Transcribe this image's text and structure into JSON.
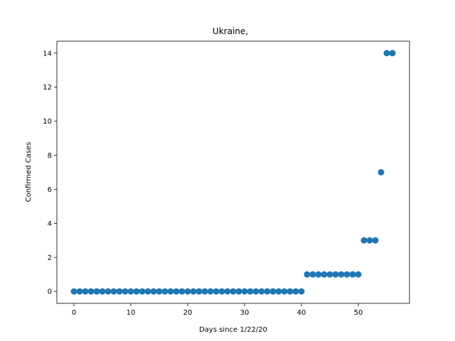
{
  "chart_data": {
    "type": "scatter",
    "title": "Ukraine,",
    "xlabel": "Days since 1/22/20",
    "ylabel": "Confirmed Cases",
    "xlim": [
      -3,
      59
    ],
    "ylim": [
      -0.7,
      14.7
    ],
    "xticks": [
      0,
      10,
      20,
      30,
      40,
      50
    ],
    "yticks": [
      0,
      2,
      4,
      6,
      8,
      10,
      12,
      14
    ],
    "grid": false,
    "marker_color": "#1f77b4",
    "series": [
      {
        "x": [
          0,
          1,
          2,
          3,
          4,
          5,
          6,
          7,
          8,
          9,
          10,
          11,
          12,
          13,
          14,
          15,
          16,
          17,
          18,
          19,
          20,
          21,
          22,
          23,
          24,
          25,
          26,
          27,
          28,
          29,
          30,
          31,
          32,
          33,
          34,
          35,
          36,
          37,
          38,
          39,
          40,
          41,
          42,
          43,
          44,
          45,
          46,
          47,
          48,
          49,
          50,
          51,
          52,
          53,
          54,
          55,
          56
        ],
        "y": [
          0,
          0,
          0,
          0,
          0,
          0,
          0,
          0,
          0,
          0,
          0,
          0,
          0,
          0,
          0,
          0,
          0,
          0,
          0,
          0,
          0,
          0,
          0,
          0,
          0,
          0,
          0,
          0,
          0,
          0,
          0,
          0,
          0,
          0,
          0,
          0,
          0,
          0,
          0,
          0,
          0,
          1,
          1,
          1,
          1,
          1,
          1,
          1,
          1,
          1,
          1,
          3,
          3,
          3,
          7,
          14,
          14
        ]
      }
    ]
  }
}
